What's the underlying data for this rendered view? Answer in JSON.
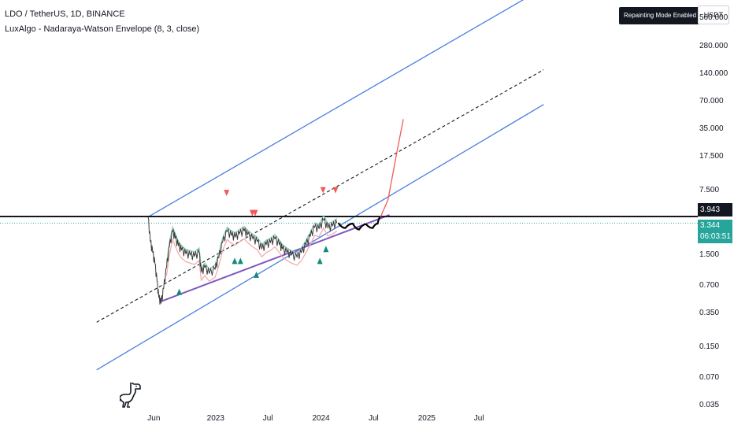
{
  "header": {
    "symbol_line": "LDO / TetherUS, 1D, BINANCE",
    "indicator_line": "LuxAlgo - Nadaraya-Watson Envelope (8, 3, close)",
    "repainting_badge": "Repainting Mode Enabled",
    "currency_button": "USDT"
  },
  "colors": {
    "channel_line": "#4a7fe0",
    "midline": "#131722",
    "support_line": "#7e57c2",
    "up_marker": "#128a7b",
    "down_marker": "#f05a5a",
    "price_label": "#26a69a",
    "projection": "#f05a5a",
    "envelope_upper": "#7ecfb5",
    "envelope_lower": "#f4a6a6"
  },
  "price_labels": {
    "horizontal_level": "3.943",
    "last_price": "3.344",
    "countdown": "06:03:51"
  },
  "chart_data": {
    "type": "line",
    "scale": "log",
    "y_ticks": [
      "560.000",
      "280.000",
      "140.000",
      "70.000",
      "35.000",
      "17.500",
      "7.500",
      "3.943",
      "3.344",
      "1.500",
      "0.700",
      "0.350",
      "0.150",
      "0.070",
      "0.035"
    ],
    "x_ticks": [
      "Jun",
      "2023",
      "Jul",
      "2024",
      "Jul",
      "2025",
      "Jul"
    ],
    "horizontal_level": 3.943,
    "last_price": 3.344,
    "price_series": {
      "dates": [
        "2022-05-12",
        "2022-05-20",
        "2022-05-28",
        "2022-06-05",
        "2022-06-12",
        "2022-06-18",
        "2022-06-26",
        "2022-07-05",
        "2022-07-15",
        "2022-07-25",
        "2022-08-05",
        "2022-08-14",
        "2022-08-25",
        "2022-09-05",
        "2022-09-20",
        "2022-10-05",
        "2022-10-20",
        "2022-11-05",
        "2022-11-12",
        "2022-11-25",
        "2022-12-10",
        "2022-12-30",
        "2023-01-12",
        "2023-01-25",
        "2023-02-10",
        "2023-02-25",
        "2023-03-10",
        "2023-03-25",
        "2023-04-10",
        "2023-04-22",
        "2023-05-10",
        "2023-05-25",
        "2023-06-10",
        "2023-06-25",
        "2023-07-10",
        "2023-07-25",
        "2023-08-10",
        "2023-08-20",
        "2023-09-05",
        "2023-09-20",
        "2023-10-10",
        "2023-10-25",
        "2023-11-10",
        "2023-11-25",
        "2023-12-10",
        "2023-12-25",
        "2024-01-10",
        "2024-01-25",
        "2024-02-10",
        "2024-02-25"
      ],
      "values": [
        3.9,
        2.1,
        1.6,
        1.2,
        0.78,
        0.52,
        0.45,
        0.65,
        1.1,
        1.85,
        2.7,
        2.3,
        1.9,
        1.7,
        1.55,
        1.5,
        1.45,
        1.6,
        0.98,
        1.1,
        0.95,
        1.05,
        1.4,
        2.05,
        2.7,
        2.45,
        2.35,
        2.55,
        2.75,
        2.5,
        2.25,
        2.1,
        1.75,
        1.95,
        2.05,
        2.25,
        1.95,
        1.75,
        1.6,
        1.5,
        1.42,
        1.6,
        1.95,
        2.4,
        3.0,
        2.9,
        3.6,
        2.95,
        3.1,
        3.344
      ]
    },
    "projection_black": {
      "dates": [
        "2024-03-01",
        "2024-03-25",
        "2024-04-20",
        "2024-05-12",
        "2024-06-05",
        "2024-06-28",
        "2024-07-15",
        "2024-07-25"
      ],
      "values": [
        3.35,
        2.95,
        3.3,
        2.85,
        3.25,
        2.95,
        3.3,
        3.9
      ]
    },
    "projection_red": {
      "dates": [
        "2024-07-25",
        "2024-08-20",
        "2024-09-20",
        "2024-10-12"
      ],
      "values": [
        3.9,
        6.0,
        20.0,
        45.0
      ]
    },
    "channel_upper": {
      "dates": [
        "2022-05-12",
        "2026-02-10"
      ],
      "values": [
        3.9,
        1200
      ]
    },
    "channel_mid": {
      "dates": [
        "2021-11-15",
        "2026-02-10"
      ],
      "values": [
        0.28,
        155
      ]
    },
    "channel_lower": {
      "dates": [
        "2021-11-15",
        "2026-02-10"
      ],
      "values": [
        0.085,
        65
      ]
    },
    "support": {
      "dates": [
        "2022-06-25",
        "2024-08-25"
      ],
      "values": [
        0.47,
        4.1
      ]
    },
    "up_signals": {
      "dates": [
        "2022-08-28",
        "2023-03-08",
        "2023-03-28",
        "2023-05-22",
        "2023-12-28",
        "2024-01-18"
      ],
      "values": [
        0.6,
        1.3,
        1.3,
        0.92,
        1.3,
        1.75
      ]
    },
    "down_signals": {
      "dates": [
        "2023-02-08",
        "2023-05-08",
        "2023-05-18",
        "2024-01-08",
        "2024-02-20"
      ],
      "values": [
        7.1,
        4.3,
        4.3,
        7.6,
        7.6
      ]
    }
  }
}
